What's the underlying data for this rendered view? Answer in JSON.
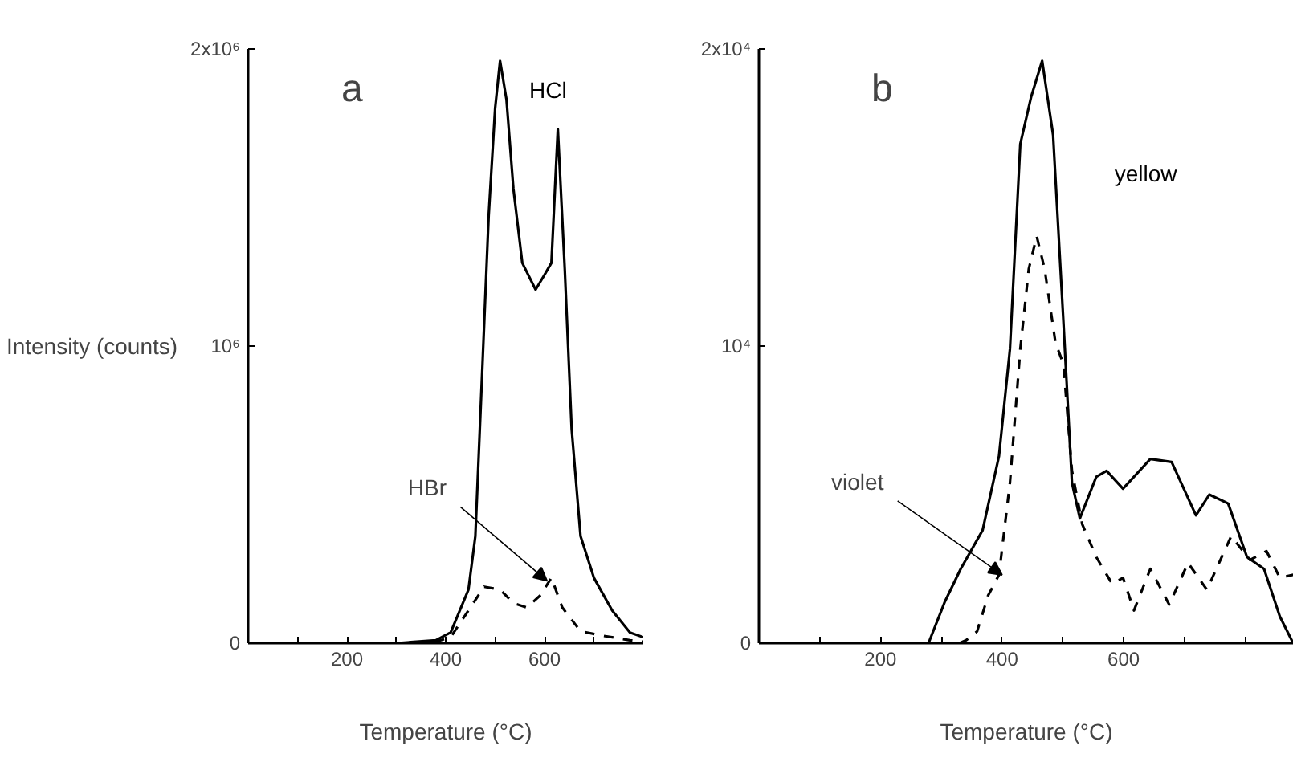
{
  "chart_data": [
    {
      "type": "line",
      "title": "a",
      "xlabel": "Temperature (°C)",
      "ylabel": "Intensity (counts)",
      "xlim": [
        0,
        800
      ],
      "ylim": [
        0,
        2000000
      ],
      "xticks": [
        {
          "value": 100,
          "label": null
        },
        200,
        {
          "value": 300,
          "label": null
        },
        400,
        {
          "value": 500,
          "label": null
        },
        600,
        {
          "value": 700,
          "label": null
        }
      ],
      "yticks": [
        0,
        {
          "value": 1000000,
          "label": "10⁶"
        },
        {
          "value": 2000000,
          "label": "2x10⁶"
        }
      ],
      "grid": false,
      "legend": false,
      "annotations": [
        {
          "text": "HBr",
          "x": 605,
          "y": 210000
        }
      ],
      "series": [
        {
          "name": "HCl",
          "color": "#000000",
          "line_style": "solid",
          "x": [
            20,
            300,
            380,
            410,
            446,
            460,
            469,
            478,
            487,
            500,
            510,
            523,
            537,
            555,
            582,
            600,
            614,
            627,
            641,
            655,
            673,
            700,
            737,
            773,
            800
          ],
          "values": [
            0,
            0,
            10000,
            36000,
            180000,
            360000,
            720000,
            1080000,
            1440000,
            1800000,
            1960000,
            1830000,
            1530000,
            1280000,
            1190000,
            1240000,
            1280000,
            1730000,
            1260000,
            720000,
            360000,
            220000,
            110000,
            36000,
            20000
          ]
        },
        {
          "color": "#000000",
          "line_style": "dashed",
          "x": [
            300,
            380,
            410,
            446,
            478,
            510,
            537,
            564,
            591,
            614,
            636,
            673,
            718,
            773,
            800
          ],
          "values": [
            0,
            5000,
            20000,
            110000,
            190000,
            180000,
            135000,
            120000,
            160000,
            220000,
            120000,
            40000,
            25000,
            10000,
            5000
          ]
        }
      ]
    },
    {
      "type": "line",
      "title": "b",
      "xlabel": "Temperature (°C)",
      "xlim": [
        0,
        880
      ],
      "ylim": [
        0,
        20000
      ],
      "xticks": [
        {
          "value": 100,
          "label": null
        },
        200,
        {
          "value": 300,
          "label": null
        },
        400,
        {
          "value": 500,
          "label": null
        },
        600,
        {
          "value": 700,
          "label": null
        },
        {
          "value": 800,
          "label": null
        }
      ],
      "yticks": [
        0,
        {
          "value": 10000,
          "label": "10⁴"
        },
        {
          "value": 20000,
          "label": "2x10⁴"
        }
      ],
      "grid": false,
      "legend": false,
      "annotations": [
        {
          "text": "violet",
          "x": 400,
          "y": 2300
        }
      ],
      "series": [
        {
          "name": "yellow",
          "color": "#000000",
          "line_style": "solid",
          "x": [
            10,
            279,
            306,
            332,
            368,
            395,
            413,
            430,
            448,
            466,
            484,
            501,
            515,
            528,
            555,
            572,
            599,
            644,
            679,
            719,
            741,
            772,
            803,
            831,
            857,
            879
          ],
          "values": [
            0,
            0,
            1400,
            2500,
            3800,
            6300,
            9900,
            16800,
            18400,
            19600,
            17100,
            10800,
            5400,
            4200,
            5600,
            5800,
            5200,
            6200,
            6100,
            4300,
            5000,
            4700,
            2900,
            2500,
            900,
            0
          ]
        },
        {
          "color": "#000000",
          "line_style": "dashed",
          "x": [
            330,
            341,
            359,
            377,
            395,
            413,
            430,
            444,
            457,
            470,
            488,
            501,
            515,
            532,
            555,
            581,
            599,
            617,
            644,
            675,
            706,
            737,
            777,
            808,
            835,
            857,
            879
          ],
          "values": [
            0,
            100,
            400,
            1600,
            2300,
            5400,
            9900,
            12600,
            13700,
            12600,
            10100,
            9400,
            5800,
            4000,
            2900,
            2000,
            2200,
            1100,
            2500,
            1300,
            2700,
            1800,
            3600,
            2800,
            3100,
            2200,
            2300
          ]
        }
      ]
    }
  ]
}
